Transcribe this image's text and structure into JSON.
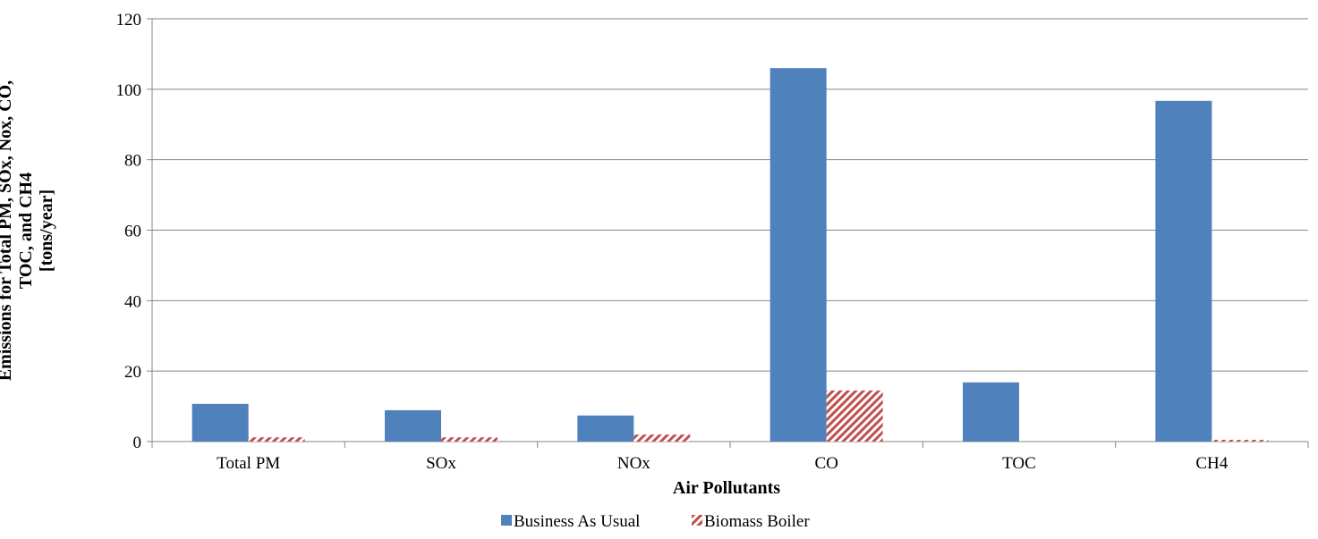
{
  "chart_data": {
    "type": "bar",
    "x_label": "Air Pollutants",
    "y_label": [
      "Emissions for Total PM, SOx, Nox, CO,",
      "TOC, and CH4",
      "[tons/year]"
    ],
    "categories": [
      "Total PM",
      "SOx",
      "NOx",
      "CO",
      "TOC",
      "CH4"
    ],
    "series": [
      {
        "name": "Business As Usual",
        "color": "#4f81bd",
        "values": [
          10.7,
          8.9,
          7.4,
          106,
          16.8,
          96.7
        ]
      },
      {
        "name": "Biomass Boiler",
        "color": "#c0504d",
        "pattern": "hatch",
        "values": [
          1.2,
          1.2,
          2.0,
          14.5,
          0,
          0.5
        ]
      }
    ],
    "ylim": [
      0,
      120
    ],
    "yticks": [
      0,
      20,
      40,
      60,
      80,
      100,
      120
    ],
    "grid": true,
    "legend": "bottom"
  }
}
